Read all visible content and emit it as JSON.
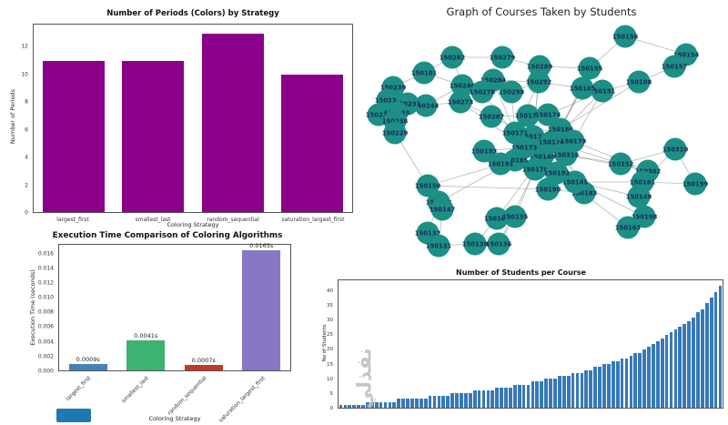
{
  "watermark": "نفذلي",
  "decorations": {
    "swatch_color": "#1f77b4"
  },
  "chart_data": [
    {
      "id": "periods_by_strategy",
      "type": "bar",
      "title": "Number of Periods (Colors) by Strategy",
      "xlabel": "Coloring Strategy",
      "ylabel": "Number of Periods",
      "categories": [
        "largest_first",
        "smallest_last",
        "random_sequential",
        "saturation_largest_first"
      ],
      "values": [
        11,
        11,
        13,
        10
      ],
      "yticks": [
        "0",
        "2",
        "4",
        "6",
        "8",
        "10",
        "12"
      ],
      "ymax": 13.65,
      "bar_color": "#8B008B",
      "grid": false,
      "legend": false
    },
    {
      "id": "courses_graph",
      "type": "scatter",
      "subtype": "network-graph",
      "title": "Graph of Courses Taken by Students",
      "node_color": "#1c9085",
      "edge_color": "#a0a0a0",
      "label_color": "#1b2a55",
      "nodes": [
        [
          "150156",
          297,
          40
        ],
        [
          "150154",
          364,
          60
        ],
        [
          "150282",
          107,
          63
        ],
        [
          "150279",
          162,
          63
        ],
        [
          "150289",
          203,
          73
        ],
        [
          "150155",
          258,
          75
        ],
        [
          "150157",
          351,
          73
        ],
        [
          "150151",
          272,
          100
        ],
        [
          "150239",
          42,
          96
        ],
        [
          "150101",
          76,
          80
        ],
        [
          "150246",
          118,
          94
        ],
        [
          "150284",
          152,
          88
        ],
        [
          "150292",
          202,
          90
        ],
        [
          "150105",
          250,
          97
        ],
        [
          "150108",
          312,
          90
        ],
        [
          "150234",
          36,
          110
        ],
        [
          "150244",
          78,
          116
        ],
        [
          "150278",
          140,
          101
        ],
        [
          "150298",
          172,
          101
        ],
        [
          "150235",
          26,
          126
        ],
        [
          "150231",
          58,
          114
        ],
        [
          "150233",
          46,
          124
        ],
        [
          "150273",
          116,
          112
        ],
        [
          "150287",
          150,
          128
        ],
        [
          "150172",
          190,
          127
        ],
        [
          "150174",
          212,
          126
        ],
        [
          "150238",
          44,
          133
        ],
        [
          "150229",
          44,
          146
        ],
        [
          "150310",
          352,
          164
        ],
        [
          "150152",
          292,
          180
        ],
        [
          "150302",
          322,
          188
        ],
        [
          "150161",
          316,
          200
        ],
        [
          "150199",
          374,
          202
        ],
        [
          "150149",
          312,
          216
        ],
        [
          "150198",
          318,
          238
        ],
        [
          "150163",
          300,
          250
        ],
        [
          "150183",
          252,
          212
        ],
        [
          "150190",
          212,
          208
        ],
        [
          "150150",
          80,
          204
        ],
        [
          "150148",
          92,
          222
        ],
        [
          "150103",
          156,
          240
        ],
        [
          "150135",
          176,
          238
        ],
        [
          "150132",
          80,
          256
        ],
        [
          "150131",
          92,
          270
        ],
        [
          "150139",
          132,
          268
        ],
        [
          "150136",
          158,
          268
        ],
        [
          "150177",
          196,
          150
        ],
        [
          "150176",
          216,
          156
        ],
        [
          "150316",
          232,
          170
        ],
        [
          "150140",
          206,
          172
        ],
        [
          "150173",
          186,
          162
        ],
        [
          "150171",
          176,
          146
        ],
        [
          "150145",
          242,
          200
        ],
        [
          "150186",
          226,
          142
        ],
        [
          "150178",
          198,
          186
        ],
        [
          "150185",
          176,
          176
        ],
        [
          "150192",
          222,
          190
        ],
        [
          "150147",
          96,
          230
        ],
        [
          "150179",
          240,
          155
        ],
        [
          "150191",
          160,
          180
        ],
        [
          "150193",
          142,
          166
        ]
      ],
      "edges": [
        [
          46,
          47
        ],
        [
          46,
          49
        ],
        [
          46,
          50
        ],
        [
          46,
          51
        ],
        [
          47,
          48
        ],
        [
          47,
          53
        ],
        [
          48,
          49
        ],
        [
          48,
          52
        ],
        [
          49,
          54
        ],
        [
          50,
          55
        ],
        [
          51,
          53
        ],
        [
          52,
          56
        ],
        [
          54,
          56
        ],
        [
          55,
          59
        ],
        [
          59,
          60
        ],
        [
          50,
          60
        ],
        [
          53,
          58
        ],
        [
          58,
          47
        ],
        [
          54,
          55
        ],
        [
          49,
          56
        ],
        [
          46,
          23
        ],
        [
          46,
          24
        ],
        [
          46,
          12
        ],
        [
          47,
          25
        ],
        [
          47,
          13
        ],
        [
          47,
          7
        ],
        [
          48,
          29
        ],
        [
          48,
          36
        ],
        [
          49,
          37
        ],
        [
          49,
          40
        ],
        [
          50,
          22
        ],
        [
          50,
          17
        ],
        [
          51,
          18
        ],
        [
          51,
          11
        ],
        [
          52,
          31
        ],
        [
          52,
          33
        ],
        [
          53,
          5
        ],
        [
          53,
          14
        ],
        [
          54,
          41
        ],
        [
          54,
          45
        ],
        [
          55,
          38
        ],
        [
          55,
          39
        ],
        [
          56,
          34
        ],
        [
          56,
          35
        ],
        [
          46,
          4
        ],
        [
          58,
          7
        ],
        [
          58,
          30
        ],
        [
          59,
          54
        ],
        [
          29,
          30
        ],
        [
          30,
          31
        ],
        [
          31,
          32
        ],
        [
          29,
          28
        ],
        [
          28,
          32
        ],
        [
          33,
          34
        ],
        [
          34,
          35
        ],
        [
          36,
          37
        ],
        [
          37,
          38
        ],
        [
          38,
          39
        ],
        [
          39,
          42
        ],
        [
          42,
          43
        ],
        [
          43,
          44
        ],
        [
          44,
          45
        ],
        [
          40,
          41
        ],
        [
          15,
          16
        ],
        [
          16,
          10
        ],
        [
          10,
          2
        ],
        [
          2,
          3
        ],
        [
          3,
          4
        ],
        [
          4,
          5
        ],
        [
          5,
          0
        ],
        [
          0,
          1
        ],
        [
          7,
          14
        ],
        [
          14,
          6
        ],
        [
          6,
          1
        ],
        [
          8,
          9
        ],
        [
          9,
          2
        ],
        [
          19,
          20
        ],
        [
          20,
          21
        ],
        [
          21,
          26
        ],
        [
          26,
          27
        ],
        [
          27,
          38
        ],
        [
          22,
          23
        ],
        [
          23,
          24
        ],
        [
          24,
          25
        ],
        [
          25,
          7
        ],
        [
          11,
          12
        ],
        [
          12,
          13
        ],
        [
          13,
          7
        ],
        [
          17,
          18
        ],
        [
          18,
          12
        ],
        [
          10,
          11
        ],
        [
          57,
          39
        ],
        [
          57,
          43
        ],
        [
          31,
          28
        ],
        [
          36,
          52
        ],
        [
          37,
          56
        ],
        [
          41,
          45
        ],
        [
          40,
          44
        ],
        [
          37,
          54
        ],
        [
          15,
          19
        ],
        [
          8,
          15
        ],
        [
          9,
          10
        ],
        [
          16,
          22
        ],
        [
          17,
          11
        ],
        [
          47,
          29
        ],
        [
          46,
          37
        ],
        [
          48,
          30
        ],
        [
          51,
          12
        ],
        [
          53,
          13
        ]
      ]
    },
    {
      "id": "execution_time",
      "type": "bar",
      "title": "Execution Time Comparison of Coloring Algorithms",
      "xlabel": "Coloring Strategy",
      "ylabel": "Execution Time (seconds)",
      "categories": [
        "largest_first",
        "smallest_last",
        "random_sequential",
        "saturation_largest_first"
      ],
      "values": [
        0.0009,
        0.0041,
        0.0007,
        0.0165
      ],
      "value_labels": [
        "0.0009s",
        "0.0041s",
        "0.0007s",
        "0.0165s"
      ],
      "bar_colors": [
        "#4682b4",
        "#3cb371",
        "#c0392b",
        "#8878c3"
      ],
      "yticks": [
        "0.000",
        "0.002",
        "0.004",
        "0.006",
        "0.008",
        "0.010",
        "0.012",
        "0.014",
        "0.016"
      ],
      "ymax": 0.0173,
      "rotate_xticks": true,
      "grid": false
    },
    {
      "id": "students_per_course",
      "type": "bar",
      "title": "Number of Students per Course",
      "xlabel": "",
      "ylabel": "No of Students",
      "yticks": [
        "0",
        "5",
        "10",
        "15",
        "20",
        "25",
        "30",
        "35",
        "40"
      ],
      "ymax": 44,
      "bar_color": "#3779b8",
      "values": [
        1,
        1,
        1,
        1,
        1,
        1,
        2,
        2,
        2,
        2,
        2,
        2,
        2,
        3,
        3,
        3,
        3,
        3,
        3,
        3,
        4,
        4,
        4,
        4,
        4,
        5,
        5,
        5,
        5,
        5,
        6,
        6,
        6,
        6,
        6,
        7,
        7,
        7,
        7,
        8,
        8,
        8,
        8,
        9,
        9,
        9,
        10,
        10,
        10,
        11,
        11,
        11,
        12,
        12,
        12,
        13,
        13,
        14,
        14,
        15,
        15,
        16,
        16,
        17,
        17,
        18,
        19,
        19,
        20,
        21,
        22,
        23,
        24,
        25,
        26,
        27,
        28,
        29,
        30,
        31,
        33,
        34,
        36,
        38,
        40,
        42
      ],
      "grid": false
    }
  ]
}
